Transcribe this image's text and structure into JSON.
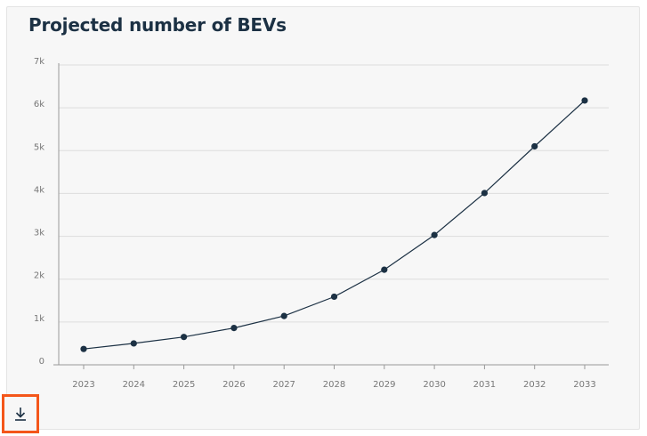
{
  "card": {
    "title": "Projected number of BEVs"
  },
  "download": {
    "icon": "download-icon"
  },
  "colors": {
    "line": "#1c3144",
    "grid": "#dddddd",
    "tick_text": "#777777",
    "accent": "#f4561a",
    "background": "#f7f7f7"
  },
  "chart_data": {
    "type": "line",
    "title": "Projected number of BEVs",
    "xlabel": "",
    "ylabel": "",
    "categories": [
      "2023",
      "2024",
      "2025",
      "2026",
      "2027",
      "2028",
      "2029",
      "2030",
      "2031",
      "2032",
      "2033"
    ],
    "series": [
      {
        "values": [
          370,
          500,
          650,
          860,
          1140,
          1590,
          2220,
          3030,
          4010,
          5100,
          6170
        ]
      }
    ],
    "ylim": [
      0,
      7000
    ],
    "yticks": [
      0,
      1000,
      2000,
      3000,
      4000,
      5000,
      6000,
      7000
    ],
    "ytick_labels": [
      "0",
      "1k",
      "2k",
      "3k",
      "4k",
      "5k",
      "6k",
      "7k"
    ],
    "grid": true,
    "legend": "none",
    "markers": true
  }
}
